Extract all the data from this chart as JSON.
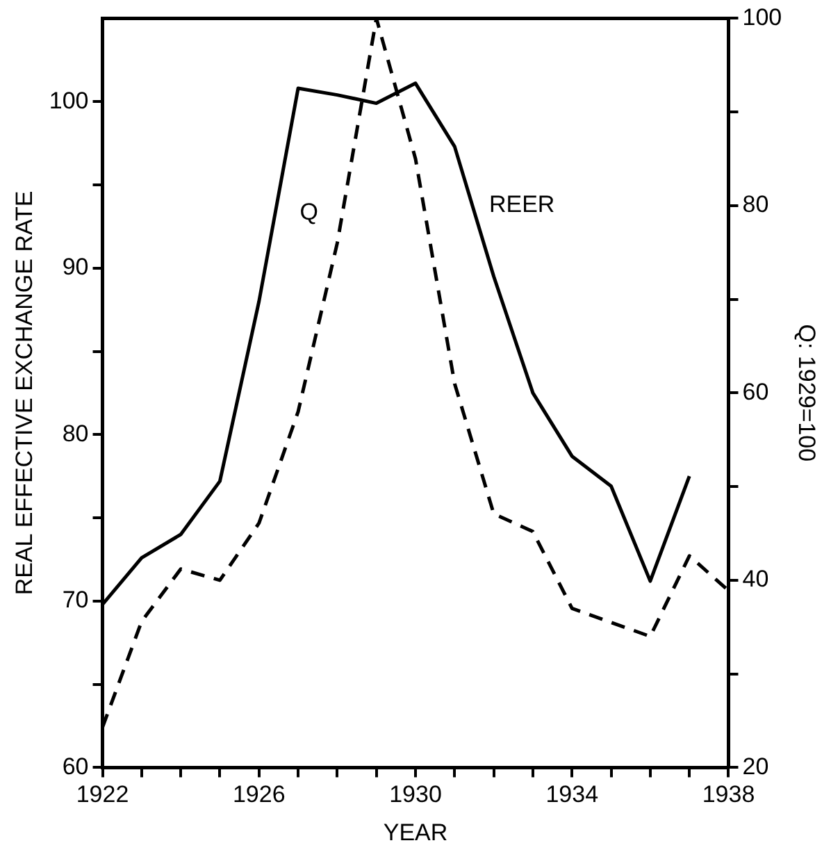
{
  "chart_data": {
    "type": "line",
    "xlabel": "YEAR",
    "ylabel": "REAL EFFECTIVE EXCHANGE RATE",
    "y2label": "Q: 1929=100",
    "xlim": [
      1922,
      1938
    ],
    "xticks": [
      1922,
      {
        "value": 1923,
        "label": null
      },
      {
        "value": 1924,
        "label": null
      },
      {
        "value": 1925,
        "label": null
      },
      1926,
      {
        "value": 1927,
        "label": null
      },
      {
        "value": 1928,
        "label": null
      },
      {
        "value": 1929,
        "label": null
      },
      1930,
      {
        "value": 1931,
        "label": null
      },
      {
        "value": 1932,
        "label": null
      },
      {
        "value": 1933,
        "label": null
      },
      1934,
      {
        "value": 1935,
        "label": null
      },
      {
        "value": 1936,
        "label": null
      },
      {
        "value": 1937,
        "label": null
      },
      1938
    ],
    "ylim": [
      60,
      105
    ],
    "yticks": [
      60,
      {
        "value": 65,
        "label": null
      },
      70,
      {
        "value": 75,
        "label": null
      },
      80,
      {
        "value": 85,
        "label": null
      },
      90,
      {
        "value": 95,
        "label": null
      },
      100
    ],
    "y2lim": [
      20,
      100
    ],
    "y2ticks": [
      20,
      {
        "value": 30,
        "label": null
      },
      40,
      {
        "value": 50,
        "label": null
      },
      60,
      {
        "value": 70,
        "label": null
      },
      80,
      {
        "value": 90,
        "label": null
      },
      100
    ],
    "grid": false,
    "legend": false,
    "marker": "none",
    "series": [
      {
        "name": "REER",
        "color": "#000000",
        "line_style": "solid",
        "x": [
          1922,
          1923,
          1924,
          1925,
          1926,
          1927,
          1928,
          1929,
          1930,
          1931,
          1932,
          1933,
          1934,
          1935,
          1936,
          1937
        ],
        "values": [
          69.8,
          72.6,
          74.0,
          77.2,
          88,
          100.8,
          100.4,
          99.9,
          101.1,
          97.3,
          89.5,
          82.5,
          78.7,
          76.9,
          71.2,
          77.5
        ]
      },
      {
        "name": "Q",
        "color": "#000000",
        "line_style": "dashed",
        "axis": "y2",
        "x": [
          1922,
          1923,
          1924,
          1925,
          1926,
          1927,
          1928,
          1929,
          1930,
          1931,
          1932,
          1933,
          1934,
          1935,
          1936,
          1937,
          1938
        ],
        "values": [
          24.3,
          35.6,
          41.2,
          40.0,
          46.1,
          58,
          76,
          100,
          85,
          61,
          47.1,
          45.2,
          37.0,
          35.5,
          34.0,
          42.6,
          38.9
        ]
      }
    ]
  }
}
